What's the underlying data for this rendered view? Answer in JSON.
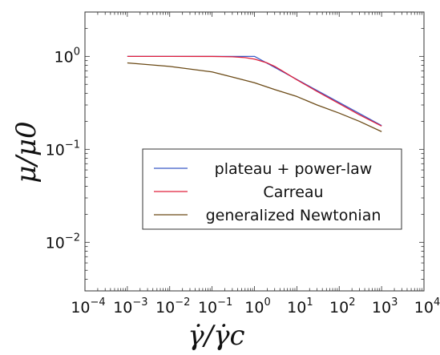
{
  "chart_data": {
    "type": "line",
    "xscale": "log",
    "yscale": "log",
    "xlim": [
      0.0001,
      10000
    ],
    "ylim": [
      0.003,
      3
    ],
    "x_tick_exponents": [
      -4,
      -3,
      -2,
      -1,
      0,
      1,
      2,
      3,
      4
    ],
    "y_tick_exponents": [
      -2,
      -1,
      0
    ],
    "xlabel": "γ̇/γ̇c",
    "ylabel": "μ/μ0",
    "legend_position": "center-right",
    "series": [
      {
        "name": "plateau + power-law",
        "color": "#3b5bc8",
        "x": [
          0.001,
          1,
          1000
        ],
        "y": [
          1.0,
          1.0,
          0.18
        ]
      },
      {
        "name": "Carreau",
        "color": "#e0203c",
        "x": [
          0.001,
          0.01,
          0.1,
          0.3,
          0.6,
          1,
          2,
          3,
          5,
          10,
          30,
          100,
          300,
          1000
        ],
        "y": [
          1.0,
          1.0,
          0.998,
          0.99,
          0.97,
          0.935,
          0.85,
          0.78,
          0.68,
          0.56,
          0.42,
          0.31,
          0.235,
          0.178
        ]
      },
      {
        "name": "generalized Newtonian",
        "color": "#6b4a16",
        "x": [
          0.001,
          0.01,
          0.1,
          0.3,
          1,
          3,
          10,
          30,
          100,
          300,
          1000
        ],
        "y": [
          0.85,
          0.78,
          0.68,
          0.6,
          0.52,
          0.44,
          0.37,
          0.3,
          0.245,
          0.2,
          0.155
        ]
      }
    ]
  }
}
